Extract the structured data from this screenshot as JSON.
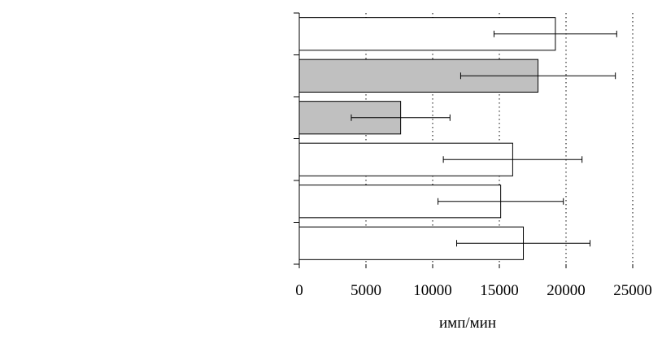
{
  "chart_data": {
    "type": "bar",
    "orientation": "horizontal",
    "categories": [
      null,
      null,
      null,
      null,
      null,
      null
    ],
    "values": [
      19200,
      17900,
      7600,
      16000,
      15100,
      16800
    ],
    "errors": [
      4600,
      5800,
      3700,
      5200,
      4700,
      5000
    ],
    "colors": [
      "#ffffff",
      "#c0c0c0",
      "#c0c0c0",
      "#ffffff",
      "#ffffff",
      "#ffffff"
    ],
    "xlim": [
      0,
      25000
    ],
    "xticks": [
      0,
      5000,
      10000,
      15000,
      20000,
      25000
    ],
    "xlabel": "имп/мин",
    "grid": true
  }
}
